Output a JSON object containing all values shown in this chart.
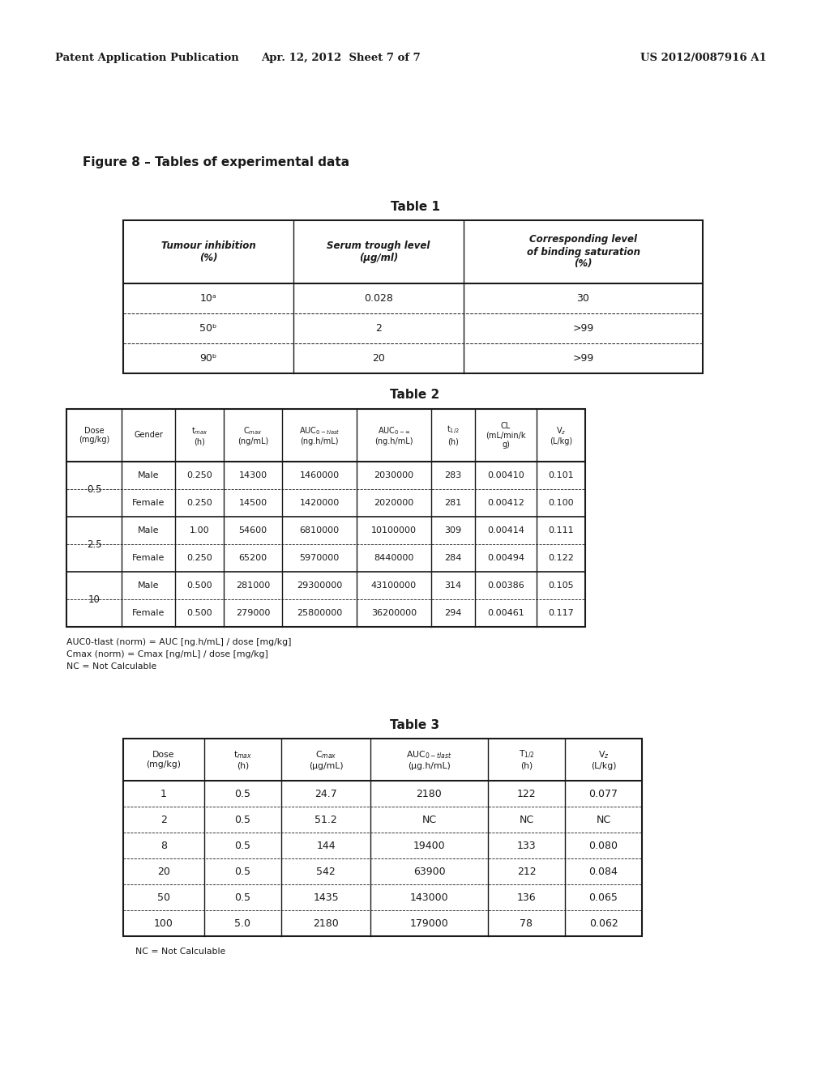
{
  "header_left": "Patent Application Publication",
  "header_center": "Apr. 12, 2012  Sheet 7 of 7",
  "header_right": "US 2012/0087916 A1",
  "figure_label": "Figure 8 – Tables of experimental data",
  "table1_title": "Table 1",
  "table1_headers": [
    "Tumour inhibition\n(%)",
    "Serum trough level\n(μg/ml)",
    "Corresponding level\nof binding saturation\n(%)"
  ],
  "table1_data": [
    [
      "10ᵃ",
      "0.028",
      "30"
    ],
    [
      "50ᵇ",
      "2",
      ">99"
    ],
    [
      "90ᵇ",
      "20",
      ">99"
    ]
  ],
  "table2_title": "Table 2",
  "table2_rows": [
    [
      "0.5",
      "Male",
      "0.250",
      "14300",
      "1460000",
      "2030000",
      "283",
      "0.00410",
      "0.101"
    ],
    [
      "0.5",
      "Female",
      "0.250",
      "14500",
      "1420000",
      "2020000",
      "281",
      "0.00412",
      "0.100"
    ],
    [
      "2.5",
      "Male",
      "1.00",
      "54600",
      "6810000",
      "10100000",
      "309",
      "0.00414",
      "0.111"
    ],
    [
      "2.5",
      "Female",
      "0.250",
      "65200",
      "5970000",
      "8440000",
      "284",
      "0.00494",
      "0.122"
    ],
    [
      "10",
      "Male",
      "0.500",
      "281000",
      "29300000",
      "43100000",
      "314",
      "0.00386",
      "0.105"
    ],
    [
      "10",
      "Female",
      "0.500",
      "279000",
      "25800000",
      "36200000",
      "294",
      "0.00461",
      "0.117"
    ]
  ],
  "table2_footnotes": [
    "AUC0-tlast (norm) = AUC [ng.h/mL] / dose [mg/kg]",
    "Cmax (norm) = Cmax [ng/mL] / dose [mg/kg]",
    "NC = Not Calculable"
  ],
  "table3_title": "Table 3",
  "table3_data": [
    [
      "1",
      "0.5",
      "24.7",
      "2180",
      "122",
      "0.077"
    ],
    [
      "2",
      "0.5",
      "51.2",
      "NC",
      "NC",
      "NC"
    ],
    [
      "8",
      "0.5",
      "144",
      "19400",
      "133",
      "0.080"
    ],
    [
      "20",
      "0.5",
      "542",
      "63900",
      "212",
      "0.084"
    ],
    [
      "50",
      "0.5",
      "1435",
      "143000",
      "136",
      "0.065"
    ],
    [
      "100",
      "5.0",
      "2180",
      "179000",
      "78",
      "0.062"
    ]
  ],
  "table3_footnote": "NC = Not Calculable",
  "bg_color": "#ffffff",
  "text_color": "#000000"
}
